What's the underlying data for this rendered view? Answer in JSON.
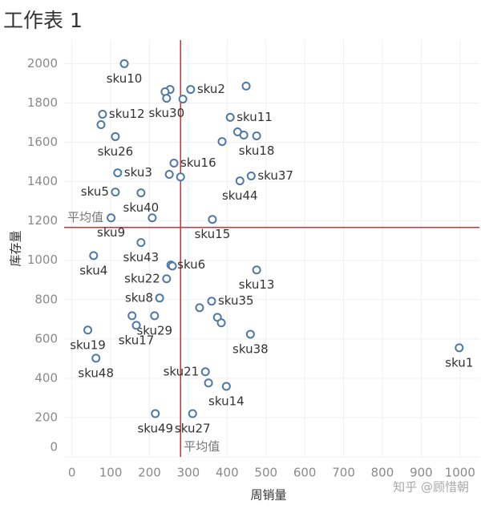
{
  "chart_data": {
    "type": "scatter",
    "title": "工作表 1",
    "x_label": "周销量",
    "y_label": "库存量",
    "watermark": "知乎 @顾惜朝",
    "x": [
      135,
      306,
      253,
      240,
      244,
      286,
      449,
      79,
      75,
      112,
      408,
      427,
      443,
      476,
      387,
      263,
      118,
      251,
      280,
      462,
      433,
      112,
      178,
      101,
      207,
      362,
      178,
      56,
      255,
      259,
      476,
      244,
      226,
      360,
      329,
      155,
      213,
      375,
      385,
      166,
      41,
      460,
      998,
      62,
      344,
      352,
      398,
      215,
      311
    ],
    "y": [
      2000,
      1869,
      1869,
      1857,
      1824,
      1820,
      1886,
      1743,
      1690,
      1629,
      1727,
      1653,
      1637,
      1633,
      1604,
      1494,
      1445,
      1437,
      1424,
      1429,
      1404,
      1347,
      1343,
      1216,
      1216,
      1208,
      1090,
      1024,
      976,
      971,
      951,
      906,
      808,
      792,
      759,
      718,
      718,
      710,
      682,
      669,
      645,
      624,
      555,
      502,
      433,
      376,
      359,
      220,
      220
    ],
    "labels": [
      "sku10",
      "sku2",
      null,
      null,
      "sku30",
      null,
      null,
      "sku12",
      null,
      "sku26",
      "sku11",
      null,
      null,
      "sku18",
      null,
      "sku16",
      "sku3",
      null,
      null,
      "sku37",
      "sku44",
      "sku5",
      "sku40",
      "sku9",
      null,
      "sku15",
      "sku43",
      "sku4",
      "sku6",
      null,
      "sku13",
      "sku22",
      "sku8",
      "sku35",
      null,
      null,
      "sku29",
      null,
      null,
      "sku17",
      "sku19",
      "sku38",
      "sku1",
      "sku48",
      "sku21",
      null,
      "sku14",
      "sku49",
      "sku27"
    ],
    "color": "#4e79a7",
    "xlim": [
      -20,
      1050
    ],
    "ylim": [
      0,
      2120
    ],
    "xticks": [
      0,
      100,
      200,
      300,
      400,
      500,
      600,
      700,
      800,
      900,
      1000
    ],
    "yticks": [
      0,
      200,
      400,
      600,
      800,
      1000,
      1200,
      1400,
      1600,
      1800,
      2000
    ],
    "grid": true,
    "reference_lines": {
      "x": 280,
      "y": 1167,
      "label": "平均值",
      "color": "#c9353a"
    }
  }
}
